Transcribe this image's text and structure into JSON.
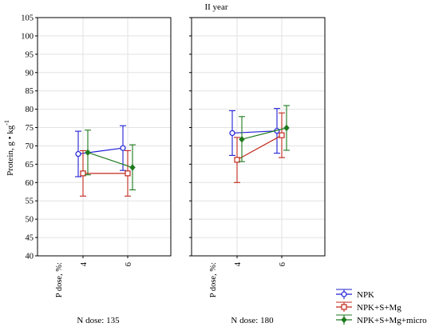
{
  "chart_data": {
    "type": "line",
    "title": "II year",
    "ylabel": "Protein, g • kg",
    "ylabel_exponent": "-1",
    "ylim": [
      40,
      105
    ],
    "y_ticks": [
      40,
      45,
      50,
      55,
      60,
      65,
      70,
      75,
      80,
      85,
      90,
      95,
      100,
      105
    ],
    "x_axis_label": "P dose, %:",
    "x_categories": [
      "4",
      "6"
    ],
    "grid": true,
    "legend_position": "bottom-right",
    "panels": [
      {
        "label": "N dose: 135",
        "series": [
          {
            "name": "NPK",
            "color": "#1f1fd6",
            "marker": "circle",
            "points": [
              {
                "x": "4",
                "y": 67.8,
                "low": 61.6,
                "high": 74.0
              },
              {
                "x": "6",
                "y": 69.4,
                "low": 63.3,
                "high": 75.5
              }
            ]
          },
          {
            "name": "NPK+S+Mg",
            "color": "#c0281d",
            "marker": "square",
            "points": [
              {
                "x": "4",
                "y": 62.5,
                "low": 56.3,
                "high": 68.7
              },
              {
                "x": "6",
                "y": 62.5,
                "low": 56.3,
                "high": 68.7
              }
            ]
          },
          {
            "name": "NPK+S+Mg+micro",
            "color": "#1d7a1d",
            "marker": "diamond",
            "points": [
              {
                "x": "4",
                "y": 68.2,
                "low": 62.1,
                "high": 74.3
              },
              {
                "x": "6",
                "y": 64.1,
                "low": 58.0,
                "high": 70.3
              }
            ]
          }
        ]
      },
      {
        "label": "N dose: 180",
        "series": [
          {
            "name": "NPK",
            "color": "#1f1fd6",
            "marker": "circle",
            "points": [
              {
                "x": "4",
                "y": 73.5,
                "low": 67.4,
                "high": 79.6
              },
              {
                "x": "6",
                "y": 74.1,
                "low": 68.0,
                "high": 80.2
              }
            ]
          },
          {
            "name": "NPK+S+Mg",
            "color": "#c0281d",
            "marker": "square",
            "points": [
              {
                "x": "4",
                "y": 66.2,
                "low": 60.0,
                "high": 72.3
              },
              {
                "x": "6",
                "y": 72.9,
                "low": 66.8,
                "high": 79.0
              }
            ]
          },
          {
            "name": "NPK+S+Mg+micro",
            "color": "#1d7a1d",
            "marker": "diamond",
            "points": [
              {
                "x": "4",
                "y": 71.8,
                "low": 65.7,
                "high": 78.0
              },
              {
                "x": "6",
                "y": 74.9,
                "low": 68.8,
                "high": 81.0
              }
            ]
          }
        ]
      }
    ]
  }
}
